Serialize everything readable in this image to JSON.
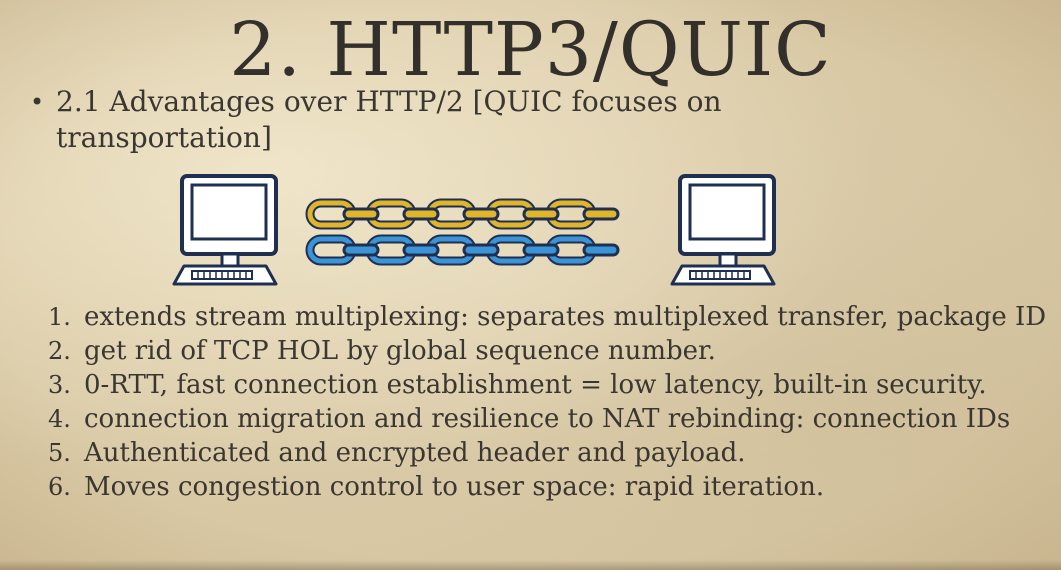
{
  "slide": {
    "title": "2. HTTP3/QUIC",
    "subhead": {
      "bullet": "•",
      "text": "2.1 Advantages over HTTP/2 [QUIC focuses on transportation]"
    },
    "diagram": {
      "left_icon": "computer-icon",
      "right_icon": "computer-icon",
      "chain_colors": [
        "#e0b52a",
        "#3a94d6"
      ],
      "outline": "#1f2f52"
    },
    "items": [
      {
        "num": "1.",
        "text": "extends stream multiplexing: separates multiplexed transfer, package ID"
      },
      {
        "num": "2.",
        "text": "get rid of TCP HOL by global sequence number."
      },
      {
        "num": "3.",
        "text": "0-RTT, fast connection establishment = low latency, built-in security."
      },
      {
        "num": "4.",
        "text": "connection migration and resilience to NAT rebinding: connection IDs"
      },
      {
        "num": "5.",
        "text": "Authenticated and encrypted header and payload."
      },
      {
        "num": "6.",
        "text": "Moves congestion control to user space: rapid iteration."
      }
    ]
  }
}
